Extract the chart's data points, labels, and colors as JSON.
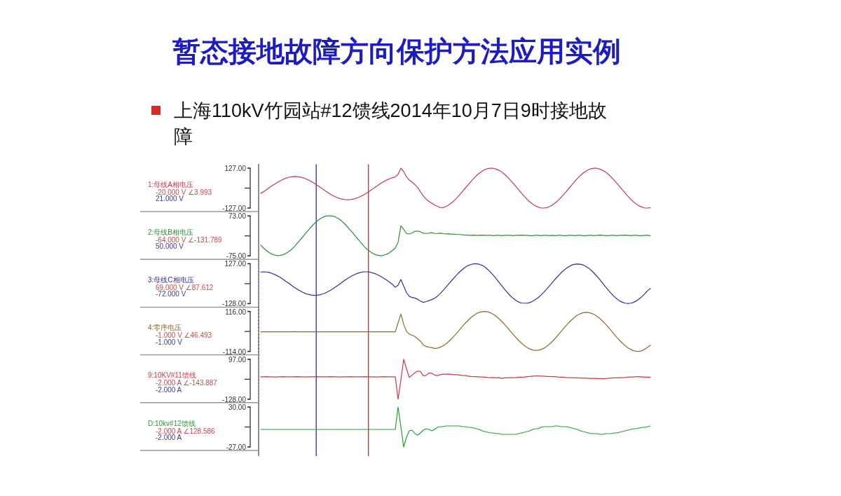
{
  "chart_data": [
    {
      "type": "line",
      "title": "暂态接地故障方向保护方法应用实例",
      "subtitle": "上海110kV竹园站#12馈线2014年10月7日9时接地故障",
      "categories": [
        null,
        null,
        null,
        null,
        null,
        null,
        null,
        null,
        null,
        null,
        null,
        null,
        null,
        null,
        null,
        null,
        null,
        null,
        null,
        null,
        null,
        null,
        null,
        null,
        null,
        null,
        null,
        null,
        null,
        null,
        null,
        null,
        null,
        null,
        null,
        null,
        null,
        null,
        null,
        null,
        null,
        null,
        null,
        null,
        null,
        null,
        null,
        null,
        null,
        null,
        null,
        null,
        null,
        null,
        null,
        null,
        null,
        null,
        null,
        null,
        null,
        null,
        null,
        null,
        null,
        null,
        null,
        null,
        null,
        null,
        null,
        null,
        null,
        null,
        null,
        null,
        null,
        null,
        null,
        null,
        null,
        null,
        null,
        null,
        null,
        null,
        null,
        null,
        null,
        null,
        null,
        null,
        null,
        null,
        null,
        null,
        null,
        null,
        null,
        null,
        null,
        null,
        null,
        null,
        null,
        null,
        null,
        null,
        null,
        null,
        null,
        null,
        null,
        null,
        null,
        null,
        null,
        null,
        null,
        null,
        null,
        null,
        null,
        null,
        null,
        null,
        null,
        null,
        null,
        null,
        null,
        null,
        null,
        null,
        null,
        null,
        null,
        null,
        null,
        null
      ],
      "series": [
        {
          "name": "1:母线A相电压",
          "color": "#c03c50",
          "values": [
            -34,
            -23,
            -11,
            2,
            14,
            26,
            37,
            47,
            56,
            63,
            69,
            72,
            74,
            73,
            71,
            66,
            60,
            52,
            42,
            32,
            20,
            8,
            -5,
            -17,
            -29,
            -40,
            -50,
            -58,
            -65,
            -70,
            -73,
            -74,
            -73,
            -70,
            -65,
            -58,
            -50,
            -40,
            -29,
            -17,
            -5,
            8,
            20,
            32,
            42,
            52,
            60,
            66,
            71,
            88,
            127,
            105,
            72,
            51,
            38,
            22,
            4,
            -24,
            -50,
            -70,
            -85,
            -96,
            -107,
            -116,
            -123,
            -124,
            -118,
            -108,
            -95,
            -80,
            -62,
            -42,
            -21,
            0,
            21,
            42,
            62,
            80,
            95,
            108,
            118,
            124,
            127,
            126,
            121,
            113,
            102,
            88,
            71,
            52,
            32,
            11,
            -11,
            -32,
            -52,
            -71,
            -88,
            -102,
            -113,
            -121,
            -126,
            -127,
            -124,
            -118,
            -108,
            -95,
            -80,
            -62,
            -42,
            -22,
            0,
            21,
            42,
            62,
            80,
            95,
            108,
            118,
            124,
            127,
            126,
            121,
            113,
            102,
            88,
            71,
            52,
            32,
            11,
            -11,
            -32,
            -52,
            -71,
            -88,
            -102,
            -113,
            -121,
            -126,
            -127,
            -124
          ]
        }
      ],
      "ylim": [
        -127,
        127
      ],
      "yticks": [
        {
          "value": 127,
          "label": "127.00"
        },
        {
          "value": -127,
          "label": "-127.00"
        }
      ],
      "tick_labels": "y",
      "annotations": [
        "-20.000 V ∠3.993",
        "21.000 V"
      ]
    },
    {
      "type": "line",
      "categories": [
        null,
        null,
        null,
        null,
        null,
        null,
        null,
        null,
        null,
        null,
        null,
        null,
        null,
        null,
        null,
        null,
        null,
        null,
        null,
        null,
        null,
        null,
        null,
        null,
        null,
        null,
        null,
        null,
        null,
        null,
        null,
        null,
        null,
        null,
        null,
        null,
        null,
        null,
        null,
        null,
        null,
        null,
        null,
        null,
        null,
        null,
        null,
        null,
        null,
        null,
        null,
        null,
        null,
        null,
        null,
        null,
        null,
        null,
        null,
        null,
        null,
        null,
        null,
        null,
        null,
        null,
        null,
        null,
        null,
        null,
        null,
        null,
        null,
        null,
        null,
        null,
        null,
        null,
        null,
        null,
        null,
        null,
        null,
        null,
        null,
        null,
        null,
        null,
        null,
        null,
        null,
        null,
        null,
        null,
        null,
        null,
        null,
        null,
        null,
        null,
        null,
        null,
        null,
        null,
        null,
        null,
        null,
        null,
        null,
        null,
        null,
        null,
        null,
        null,
        null,
        null,
        null,
        null,
        null,
        null,
        null,
        null,
        null,
        null,
        null,
        null,
        null,
        null,
        null,
        null,
        null,
        null,
        null,
        null,
        null,
        null,
        null,
        null,
        null,
        null
      ],
      "series": [
        {
          "name": "2:母线B相电压",
          "color": "#2f8f3a",
          "values": [
            -35,
            -46,
            -55,
            -63,
            -69,
            -72,
            -74,
            -73,
            -71,
            -66,
            -59,
            -51,
            -41,
            -29,
            -17,
            -5,
            8,
            20,
            32,
            43,
            53,
            61,
            67,
            72,
            73,
            73,
            72,
            67,
            61,
            53,
            43,
            32,
            20,
            8,
            -5,
            -17,
            -29,
            -41,
            -51,
            -59,
            -66,
            -71,
            -73,
            -75,
            -72,
            -69,
            -63,
            -55,
            -46,
            -25,
            36,
            23,
            8,
            6,
            10,
            16,
            17,
            14,
            9,
            8,
            9,
            11,
            8,
            8,
            9,
            8,
            6,
            7,
            5,
            6,
            4,
            4,
            3,
            2,
            2,
            1,
            2,
            1,
            1,
            2,
            1,
            1,
            1,
            0,
            1,
            1,
            0,
            1,
            1,
            1,
            0,
            1,
            1,
            2,
            1,
            1,
            0,
            0,
            1,
            1,
            0,
            1,
            1,
            0,
            1,
            0,
            1,
            1,
            0,
            0,
            1,
            1,
            0,
            1,
            1,
            0,
            0,
            1,
            1,
            0,
            1,
            2,
            1,
            0,
            0,
            1,
            1,
            0,
            1,
            1,
            2,
            1,
            0,
            1,
            1,
            0,
            0,
            1,
            1,
            0
          ]
        }
      ],
      "ylim": [
        -75,
        73
      ],
      "yticks": [
        {
          "value": 73,
          "label": "73.00"
        },
        {
          "value": -75,
          "label": "-75.00"
        }
      ],
      "tick_labels": "y",
      "annotations": [
        "-64.000 V ∠-131.789",
        "50.000 V"
      ]
    },
    {
      "type": "line",
      "categories": [
        null,
        null,
        null,
        null,
        null,
        null,
        null,
        null,
        null,
        null,
        null,
        null,
        null,
        null,
        null,
        null,
        null,
        null,
        null,
        null,
        null,
        null,
        null,
        null,
        null,
        null,
        null,
        null,
        null,
        null,
        null,
        null,
        null,
        null,
        null,
        null,
        null,
        null,
        null,
        null,
        null,
        null,
        null,
        null,
        null,
        null,
        null,
        null,
        null,
        null,
        null,
        null,
        null,
        null,
        null,
        null,
        null,
        null,
        null,
        null,
        null,
        null,
        null,
        null,
        null,
        null,
        null,
        null,
        null,
        null,
        null,
        null,
        null,
        null,
        null,
        null,
        null,
        null,
        null,
        null,
        null,
        null,
        null,
        null,
        null,
        null,
        null,
        null,
        null,
        null,
        null,
        null,
        null,
        null,
        null,
        null,
        null,
        null,
        null,
        null,
        null,
        null,
        null,
        null,
        null,
        null,
        null,
        null,
        null,
        null,
        null,
        null,
        null,
        null,
        null,
        null,
        null,
        null,
        null,
        null,
        null,
        null,
        null,
        null,
        null,
        null,
        null,
        null,
        null,
        null,
        null,
        null,
        null,
        null,
        null,
        null,
        null,
        null,
        null,
        null
      ],
      "series": [
        {
          "name": "3:母线C相电压",
          "color": "#2e3192",
          "values": [
            74,
            75,
            74,
            71,
            65,
            58,
            49,
            39,
            27,
            14,
            2,
            -11,
            -24,
            -36,
            -46,
            -56,
            -64,
            -69,
            -73,
            -75,
            -74,
            -72,
            -67,
            -60,
            -51,
            -41,
            -30,
            -18,
            -5,
            8,
            21,
            33,
            44,
            54,
            62,
            68,
            73,
            75,
            75,
            73,
            68,
            62,
            54,
            44,
            33,
            21,
            8,
            -5,
            -24,
            -10,
            26,
            -15,
            -58,
            -81,
            -89,
            -92,
            -100,
            -112,
            -120,
            -115,
            -109,
            -102,
            -94,
            -81,
            -64,
            -45,
            -25,
            -4,
            17,
            38,
            57,
            75,
            91,
            105,
            115,
            122,
            126,
            127,
            123,
            116,
            105,
            90,
            72,
            53,
            31,
            9,
            -14,
            -36,
            -57,
            -77,
            -93,
            -107,
            -118,
            -124,
            -125,
            -125,
            -121,
            -113,
            -102,
            -89,
            -73,
            -55,
            -35,
            -15,
            6,
            27,
            47,
            66,
            83,
            97,
            109,
            118,
            124,
            125,
            124,
            119,
            110,
            98,
            83,
            65,
            45,
            24,
            2,
            -21,
            -42,
            -62,
            -81,
            -97,
            -110,
            -119,
            -125,
            -127,
            -125,
            -120,
            -110,
            -98,
            -83,
            -65,
            -45,
            -31
          ]
        }
      ],
      "ylim": [
        -128,
        127
      ],
      "yticks": [
        {
          "value": 127,
          "label": "127.00"
        },
        {
          "value": -128,
          "label": "-128.00"
        }
      ],
      "tick_labels": "y",
      "annotations": [
        "69.000 V ∠87.612",
        "-72.000 V"
      ]
    },
    {
      "type": "line",
      "categories": [
        null,
        null,
        null,
        null,
        null,
        null,
        null,
        null,
        null,
        null,
        null,
        null,
        null,
        null,
        null,
        null,
        null,
        null,
        null,
        null,
        null,
        null,
        null,
        null,
        null,
        null,
        null,
        null,
        null,
        null,
        null,
        null,
        null,
        null,
        null,
        null,
        null,
        null,
        null,
        null,
        null,
        null,
        null,
        null,
        null,
        null,
        null,
        null,
        null,
        null,
        null,
        null,
        null,
        null,
        null,
        null,
        null,
        null,
        null,
        null,
        null,
        null,
        null,
        null,
        null,
        null,
        null,
        null,
        null,
        null,
        null,
        null,
        null,
        null,
        null,
        null,
        null,
        null,
        null,
        null,
        null,
        null,
        null,
        null,
        null,
        null,
        null,
        null,
        null,
        null,
        null,
        null,
        null,
        null,
        null,
        null,
        null,
        null,
        null,
        null,
        null,
        null,
        null,
        null,
        null,
        null,
        null,
        null,
        null,
        null,
        null,
        null,
        null,
        null,
        null,
        null,
        null,
        null,
        null,
        null,
        null,
        null,
        null,
        null,
        null,
        null,
        null,
        null,
        null,
        null,
        null,
        null,
        null,
        null,
        null,
        null,
        null,
        null,
        null,
        null
      ],
      "series": [
        {
          "name": "4:零序电压",
          "color": "#8c6d2c",
          "values": [
            -1,
            -1,
            -1,
            -1,
            -1,
            -1,
            -1,
            -1,
            -1,
            -1,
            -1,
            -1,
            0,
            -1,
            -1,
            -1,
            -1,
            -1,
            -1,
            -1,
            -1,
            -1,
            -1,
            -1,
            -1,
            -1,
            -1,
            -1,
            -1,
            -1,
            -1,
            -1,
            -1,
            -1,
            -1,
            -1,
            -1,
            -1,
            -1,
            -1,
            -1,
            -1,
            -1,
            -1,
            -1,
            -1,
            -1,
            -1,
            -1,
            50,
            102,
            41,
            2,
            -14,
            -21,
            -28,
            -42,
            -56,
            -76,
            -86,
            -90,
            -92,
            -97,
            -95,
            -90,
            -82,
            -71,
            -58,
            -42,
            -25,
            -7,
            12,
            31,
            49,
            65,
            81,
            93,
            104,
            111,
            115,
            116,
            114,
            108,
            99,
            88,
            74,
            59,
            41,
            23,
            4,
            -15,
            -33,
            -51,
            -66,
            -80,
            -91,
            -100,
            -106,
            -108,
            -107,
            -103,
            -96,
            -85,
            -72,
            -57,
            -40,
            -21,
            -2,
            17,
            36,
            53,
            69,
            83,
            95,
            103,
            109,
            111,
            110,
            105,
            98,
            88,
            75,
            60,
            43,
            25,
            6,
            -13,
            -32,
            -50,
            -66,
            -81,
            -93,
            -103,
            -110,
            -113,
            -114,
            -110,
            -101,
            -90,
            -78
          ]
        }
      ],
      "ylim": [
        -114,
        116
      ],
      "yticks": [
        {
          "value": 116,
          "label": "116.00"
        },
        {
          "value": -114,
          "label": "-114.00"
        }
      ],
      "tick_labels": "y",
      "annotations": [
        "-1.000 V ∠46.493",
        "-1.000 V"
      ]
    },
    {
      "type": "line",
      "categories": [
        null,
        null,
        null,
        null,
        null,
        null,
        null,
        null,
        null,
        null,
        null,
        null,
        null,
        null,
        null,
        null,
        null,
        null,
        null,
        null,
        null,
        null,
        null,
        null,
        null,
        null,
        null,
        null,
        null,
        null,
        null,
        null,
        null,
        null,
        null,
        null,
        null,
        null,
        null,
        null,
        null,
        null,
        null,
        null,
        null,
        null,
        null,
        null,
        null,
        null,
        null,
        null,
        null,
        null,
        null,
        null,
        null,
        null,
        null,
        null,
        null,
        null,
        null,
        null,
        null,
        null,
        null,
        null,
        null,
        null,
        null,
        null,
        null,
        null,
        null,
        null,
        null,
        null,
        null,
        null,
        null,
        null,
        null,
        null,
        null,
        null,
        null,
        null,
        null,
        null,
        null,
        null,
        null,
        null,
        null,
        null,
        null,
        null,
        null,
        null,
        null,
        null,
        null,
        null,
        null,
        null,
        null,
        null,
        null,
        null,
        null,
        null,
        null,
        null,
        null,
        null,
        null,
        null,
        null,
        null,
        null,
        null,
        null,
        null,
        null,
        null,
        null,
        null,
        null,
        null,
        null,
        null,
        null,
        null,
        null,
        null,
        null,
        null,
        null,
        null
      ],
      "series": [
        {
          "name": "9:10KV#11馈线",
          "color": "#c83c46",
          "values": [
            -2,
            -2,
            -1,
            -2,
            -2,
            -3,
            -2,
            -2,
            -1,
            -2,
            -2,
            -2,
            -2,
            -1,
            -2,
            -2,
            -3,
            -2,
            -2,
            -2,
            -1,
            -2,
            -2,
            -2,
            -2,
            -1,
            -2,
            -2,
            -3,
            -2,
            -2,
            -2,
            -1,
            -2,
            -2,
            -2,
            -2,
            -1,
            -2,
            -2,
            -2,
            -3,
            -2,
            -2,
            -1,
            -2,
            -2,
            -2,
            -2,
            -128,
            -20,
            97,
            44,
            -6,
            8,
            21,
            30,
            28,
            4,
            6,
            20,
            18,
            8,
            5,
            10,
            13,
            13,
            14,
            12,
            10,
            10,
            8,
            6,
            5,
            2,
            0,
            -1,
            -1,
            -3,
            -3,
            -4,
            -6,
            -7,
            -6,
            -8,
            -7,
            -11,
            -8,
            -8,
            -7,
            -7,
            -6,
            -4,
            -4,
            -3,
            -1,
            0,
            2,
            3,
            3,
            2,
            2,
            0,
            0,
            -1,
            -1,
            -3,
            -4,
            -4,
            -6,
            -7,
            -7,
            -8,
            -8,
            -9,
            -9,
            -9,
            -11,
            -11,
            -11,
            -12,
            -12,
            -13,
            -12,
            -11,
            -9,
            -8,
            -8,
            -7,
            -7,
            -6,
            -4,
            -3,
            -3,
            -1,
            -1,
            -3,
            -3,
            -4,
            -4
          ]
        }
      ],
      "ylim": [
        -128,
        97
      ],
      "yticks": [
        {
          "value": 97,
          "label": "97.00"
        },
        {
          "value": -128,
          "label": "-128.00"
        }
      ],
      "tick_labels": "y",
      "annotations": [
        "-2.000 A ∠-143.887",
        "-2.000 A"
      ]
    },
    {
      "type": "line",
      "categories": [
        null,
        null,
        null,
        null,
        null,
        null,
        null,
        null,
        null,
        null,
        null,
        null,
        null,
        null,
        null,
        null,
        null,
        null,
        null,
        null,
        null,
        null,
        null,
        null,
        null,
        null,
        null,
        null,
        null,
        null,
        null,
        null,
        null,
        null,
        null,
        null,
        null,
        null,
        null,
        null,
        null,
        null,
        null,
        null,
        null,
        null,
        null,
        null,
        null,
        null,
        null,
        null,
        null,
        null,
        null,
        null,
        null,
        null,
        null,
        null,
        null,
        null,
        null,
        null,
        null,
        null,
        null,
        null,
        null,
        null,
        null,
        null,
        null,
        null,
        null,
        null,
        null,
        null,
        null,
        null,
        null,
        null,
        null,
        null,
        null,
        null,
        null,
        null,
        null,
        null,
        null,
        null,
        null,
        null,
        null,
        null,
        null,
        null,
        null,
        null,
        null,
        null,
        null,
        null,
        null,
        null,
        null,
        null,
        null,
        null,
        null,
        null,
        null,
        null,
        null,
        null,
        null,
        null,
        null,
        null,
        null,
        null,
        null,
        null,
        null,
        null,
        null,
        null,
        null,
        null,
        null,
        null,
        null,
        null,
        null,
        null,
        null,
        null,
        null,
        null
      ],
      "series": [
        {
          "name": "D:10kv#12馈线",
          "color": "#2a9a3a",
          "values": [
            -2,
            -2,
            -2,
            -2,
            -2,
            -2,
            -2,
            -2,
            -2,
            -2,
            -2,
            -2,
            -2,
            -2,
            -2,
            -2,
            -2,
            -2,
            -2,
            -2,
            -2,
            -2,
            -2,
            -2,
            -2,
            -2,
            -2,
            -2,
            -2,
            -2,
            -2,
            -2,
            -2,
            -2,
            -2,
            -2,
            -2,
            -2,
            -2,
            -2,
            -2,
            -2,
            -2,
            -2,
            -2,
            -2,
            -2,
            -2,
            -2,
            30,
            2,
            -27,
            -13,
            -4,
            -3,
            -8,
            -10,
            -7,
            -3,
            -1,
            -2,
            -4,
            -2,
            1,
            2,
            2,
            3,
            3,
            3,
            3,
            3,
            3,
            2,
            2,
            1,
            1,
            0,
            -1,
            -2,
            -4,
            -5,
            -6,
            -7,
            -7,
            -8,
            -8,
            -9,
            -9,
            -9,
            -9,
            -9,
            -9,
            -8,
            -7,
            -6,
            -5,
            -4,
            -2,
            -1,
            -1,
            1,
            2,
            2,
            2,
            2,
            3,
            3,
            2,
            2,
            2,
            1,
            0,
            -1,
            -2,
            -4,
            -5,
            -6,
            -7,
            -8,
            -8,
            -8,
            -9,
            -9,
            -8,
            -8,
            -8,
            -7,
            -7,
            -6,
            -5,
            -4,
            -3,
            -2,
            -1,
            -1,
            0,
            1,
            1,
            2,
            3
          ]
        }
      ],
      "ylim": [
        -27,
        30
      ],
      "yticks": [
        {
          "value": 30,
          "label": "30.00"
        },
        {
          "value": -27,
          "label": "-27.00"
        }
      ],
      "tick_labels": "y",
      "annotations": [
        "-2.000 A ∠128.586",
        "-2.000 A"
      ]
    }
  ]
}
